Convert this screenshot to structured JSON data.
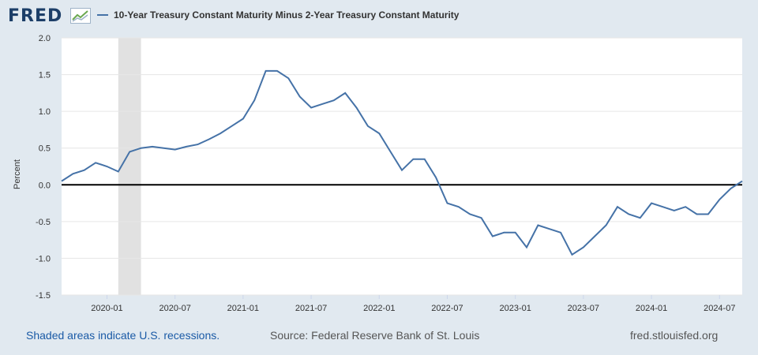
{
  "header": {
    "logo_text": "FRED",
    "logo_icon": "line-chart-icon",
    "legend_label": "10-Year Treasury Constant Maturity Minus 2-Year Treasury Constant Maturity",
    "series_color": "#4572a7"
  },
  "footer": {
    "recession_note": "Shaded areas indicate U.S. recessions.",
    "source": "Source: Federal Reserve Bank of St. Louis",
    "site": "fred.stlouisfed.org"
  },
  "chart_data": {
    "type": "line",
    "ylabel": "Percent",
    "ylim": [
      -1.5,
      2.0
    ],
    "yticks": [
      "2.0",
      "1.5",
      "1.0",
      "0.5",
      "0.0",
      "-0.5",
      "-1.0",
      "-1.5"
    ],
    "xticks": [
      "2020-01",
      "2020-07",
      "2021-01",
      "2021-07",
      "2022-01",
      "2022-07",
      "2023-01",
      "2023-07",
      "2024-01",
      "2024-07"
    ],
    "x_range": [
      "2019-09",
      "2024-09"
    ],
    "recessions": [
      {
        "start": "2020-02",
        "end": "2020-04"
      }
    ],
    "zero_line": true,
    "grid": "horizontal",
    "series": [
      {
        "x": [
          "2019-09",
          "2019-10",
          "2019-11",
          "2019-12",
          "2020-01",
          "2020-02",
          "2020-03",
          "2020-04",
          "2020-05",
          "2020-06",
          "2020-07",
          "2020-08",
          "2020-09",
          "2020-10",
          "2020-11",
          "2020-12",
          "2021-01",
          "2021-02",
          "2021-03",
          "2021-04",
          "2021-05",
          "2021-06",
          "2021-07",
          "2021-08",
          "2021-09",
          "2021-10",
          "2021-11",
          "2021-12",
          "2022-01",
          "2022-02",
          "2022-03",
          "2022-04",
          "2022-05",
          "2022-06",
          "2022-07",
          "2022-08",
          "2022-09",
          "2022-10",
          "2022-11",
          "2022-12",
          "2023-01",
          "2023-02",
          "2023-03",
          "2023-04",
          "2023-05",
          "2023-06",
          "2023-07",
          "2023-08",
          "2023-09",
          "2023-10",
          "2023-11",
          "2023-12",
          "2024-01",
          "2024-02",
          "2024-03",
          "2024-04",
          "2024-05",
          "2024-06",
          "2024-07",
          "2024-08",
          "2024-09"
        ],
        "values": [
          0.05,
          0.15,
          0.2,
          0.3,
          0.25,
          0.18,
          0.45,
          0.5,
          0.52,
          0.5,
          0.48,
          0.52,
          0.55,
          0.62,
          0.7,
          0.8,
          0.9,
          1.15,
          1.55,
          1.55,
          1.45,
          1.2,
          1.05,
          1.1,
          1.15,
          1.25,
          1.05,
          0.8,
          0.7,
          0.45,
          0.2,
          0.35,
          0.35,
          0.1,
          -0.25,
          -0.3,
          -0.4,
          -0.45,
          -0.7,
          -0.65,
          -0.65,
          -0.85,
          -0.55,
          -0.6,
          -0.65,
          -0.95,
          -0.85,
          -0.7,
          -0.55,
          -0.3,
          -0.4,
          -0.45,
          -0.25,
          -0.3,
          -0.35,
          -0.3,
          -0.4,
          -0.4,
          -0.2,
          -0.05,
          0.05
        ]
      }
    ]
  }
}
